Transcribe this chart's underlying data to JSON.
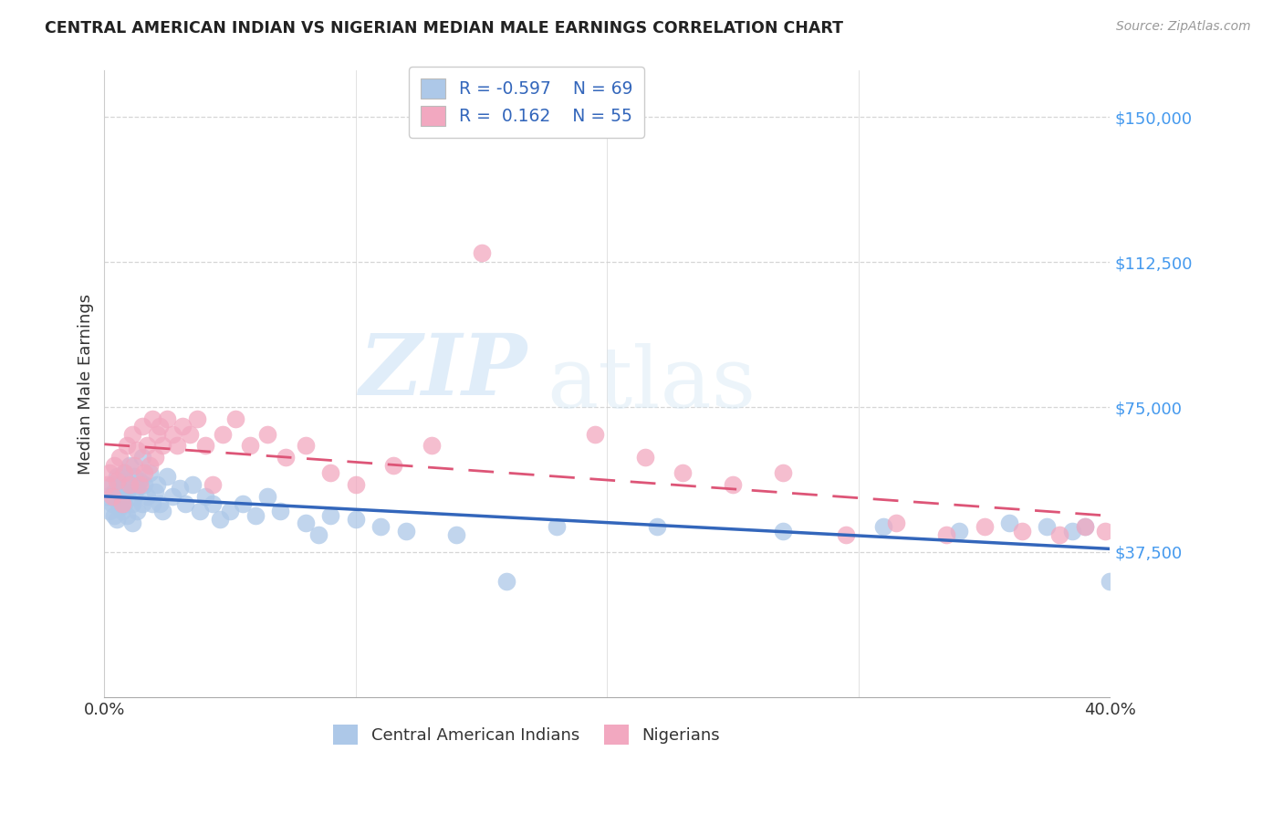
{
  "title": "CENTRAL AMERICAN INDIAN VS NIGERIAN MEDIAN MALE EARNINGS CORRELATION CHART",
  "source": "Source: ZipAtlas.com",
  "ylabel": "Median Male Earnings",
  "ytick_labels": [
    "$37,500",
    "$75,000",
    "$112,500",
    "$150,000"
  ],
  "ytick_values": [
    37500,
    75000,
    112500,
    150000
  ],
  "ymin": 0,
  "ymax": 162000,
  "xmin": 0.0,
  "xmax": 0.4,
  "blue_R": "-0.597",
  "blue_N": "69",
  "pink_R": "0.162",
  "pink_N": "55",
  "blue_color": "#adc8e8",
  "pink_color": "#f2a8c0",
  "blue_line_color": "#3366bb",
  "pink_line_color": "#dd5577",
  "legend_label_blue": "Central American Indians",
  "legend_label_pink": "Nigerians",
  "watermark_zip": "ZIP",
  "watermark_atlas": "atlas",
  "blue_points_x": [
    0.001,
    0.002,
    0.003,
    0.003,
    0.004,
    0.004,
    0.005,
    0.005,
    0.005,
    0.006,
    0.006,
    0.007,
    0.007,
    0.007,
    0.008,
    0.008,
    0.009,
    0.009,
    0.01,
    0.01,
    0.011,
    0.011,
    0.012,
    0.012,
    0.013,
    0.013,
    0.014,
    0.015,
    0.015,
    0.016,
    0.017,
    0.018,
    0.019,
    0.02,
    0.021,
    0.022,
    0.023,
    0.025,
    0.027,
    0.03,
    0.032,
    0.035,
    0.038,
    0.04,
    0.043,
    0.046,
    0.05,
    0.055,
    0.06,
    0.065,
    0.07,
    0.08,
    0.085,
    0.09,
    0.1,
    0.11,
    0.12,
    0.14,
    0.16,
    0.18,
    0.22,
    0.27,
    0.31,
    0.34,
    0.36,
    0.375,
    0.385,
    0.39,
    0.4
  ],
  "blue_points_y": [
    52000,
    48000,
    55000,
    50000,
    53000,
    47000,
    57000,
    51000,
    46000,
    54000,
    49000,
    56000,
    52000,
    48000,
    58000,
    50000,
    53000,
    47000,
    60000,
    55000,
    50000,
    45000,
    57000,
    52000,
    54000,
    48000,
    56000,
    62000,
    50000,
    55000,
    52000,
    58000,
    50000,
    53000,
    55000,
    50000,
    48000,
    57000,
    52000,
    54000,
    50000,
    55000,
    48000,
    52000,
    50000,
    46000,
    48000,
    50000,
    47000,
    52000,
    48000,
    45000,
    42000,
    47000,
    46000,
    44000,
    43000,
    42000,
    30000,
    44000,
    44000,
    43000,
    44000,
    43000,
    45000,
    44000,
    43000,
    44000,
    30000
  ],
  "pink_points_x": [
    0.001,
    0.002,
    0.003,
    0.004,
    0.005,
    0.006,
    0.007,
    0.008,
    0.009,
    0.01,
    0.011,
    0.012,
    0.013,
    0.014,
    0.015,
    0.016,
    0.017,
    0.018,
    0.019,
    0.02,
    0.021,
    0.022,
    0.023,
    0.025,
    0.027,
    0.029,
    0.031,
    0.034,
    0.037,
    0.04,
    0.043,
    0.047,
    0.052,
    0.058,
    0.065,
    0.072,
    0.08,
    0.09,
    0.1,
    0.115,
    0.13,
    0.15,
    0.195,
    0.215,
    0.23,
    0.25,
    0.27,
    0.295,
    0.315,
    0.335,
    0.35,
    0.365,
    0.38,
    0.39,
    0.398
  ],
  "pink_points_y": [
    55000,
    58000,
    52000,
    60000,
    56000,
    62000,
    50000,
    58000,
    65000,
    55000,
    68000,
    60000,
    64000,
    55000,
    70000,
    58000,
    65000,
    60000,
    72000,
    62000,
    68000,
    70000,
    65000,
    72000,
    68000,
    65000,
    70000,
    68000,
    72000,
    65000,
    55000,
    68000,
    72000,
    65000,
    68000,
    62000,
    65000,
    58000,
    55000,
    60000,
    65000,
    115000,
    68000,
    62000,
    58000,
    55000,
    58000,
    42000,
    45000,
    42000,
    44000,
    43000,
    42000,
    44000,
    43000
  ],
  "xtick_positions": [
    0.0,
    0.1,
    0.2,
    0.3,
    0.4
  ],
  "xtick_show_labels": [
    true,
    false,
    false,
    false,
    true
  ]
}
